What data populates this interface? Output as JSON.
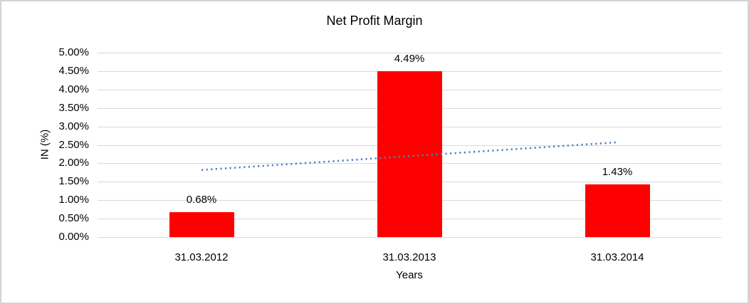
{
  "window": {
    "background": "#ffffff",
    "border_color": "#d3d3d3"
  },
  "chart_data": {
    "type": "bar",
    "title": "Net Profit Margin",
    "categories": [
      "31.03.2012",
      "31.03.2013",
      "31.03.2014"
    ],
    "values": [
      0.68,
      4.49,
      1.43
    ],
    "data_labels": [
      "0.68%",
      "4.49%",
      "1.43%"
    ],
    "xlabel": "Years",
    "ylabel": "IN (%)",
    "ylim": [
      0,
      5
    ],
    "ytick_step": 0.5,
    "ytick_labels": [
      "0.00%",
      "0.50%",
      "1.00%",
      "1.50%",
      "2.00%",
      "2.50%",
      "3.00%",
      "3.50%",
      "4.00%",
      "4.50%",
      "5.00%"
    ],
    "grid": true,
    "legend": "none",
    "bar_color": "#ff0000",
    "gridline_color": "#d9d9d9",
    "label_color": "#000000",
    "trendline": {
      "type": "linear",
      "style": "dotted",
      "color": "#4f81bd",
      "start_value": 1.82,
      "end_value": 2.57
    }
  }
}
